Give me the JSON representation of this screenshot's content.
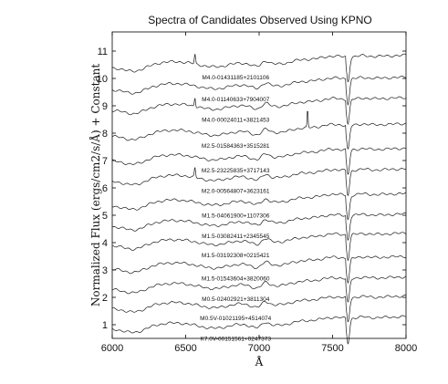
{
  "chart_data": {
    "type": "line",
    "title": "Spectra of Candidates Observed Using KPNO",
    "xlabel": "Å",
    "ylabel": "Normalized Flux (ergs/cm2/s/Å) + Constant",
    "xlim": [
      6000,
      8000
    ],
    "ylim": [
      0.5,
      11.7
    ],
    "x_ticks": [
      6000,
      6500,
      7000,
      7500,
      8000
    ],
    "y_ticks": [
      1,
      2,
      3,
      4,
      5,
      6,
      7,
      8,
      9,
      10,
      11
    ],
    "grid": false,
    "series": [
      {
        "name": "M4.0-01431185+2101106",
        "offset": 10.4
      },
      {
        "name": "M4.0-01140633+7904007",
        "offset": 9.6
      },
      {
        "name": "M4.0-00024011+3821453",
        "offset": 8.85
      },
      {
        "name": "M2.5-01584363+3515281",
        "offset": 7.9
      },
      {
        "name": "M2.5-23225835+3717143",
        "offset": 7.0
      },
      {
        "name": "M2.0-00564807+3623161",
        "offset": 6.25
      },
      {
        "name": "M1.5-04061900+1107306",
        "offset": 5.35
      },
      {
        "name": "M1.5-03082411+2345545",
        "offset": 4.6
      },
      {
        "name": "M1.5-03192308+0215421",
        "offset": 3.9
      },
      {
        "name": "M1.5-01543604+3820060",
        "offset": 3.05
      },
      {
        "name": "M0.5-02402921+3811304",
        "offset": 2.3
      },
      {
        "name": "M0.5V-01021195+4514074",
        "offset": 1.6
      },
      {
        "name": "K7.0V-00151561+0247373",
        "offset": 0.85
      }
    ]
  }
}
